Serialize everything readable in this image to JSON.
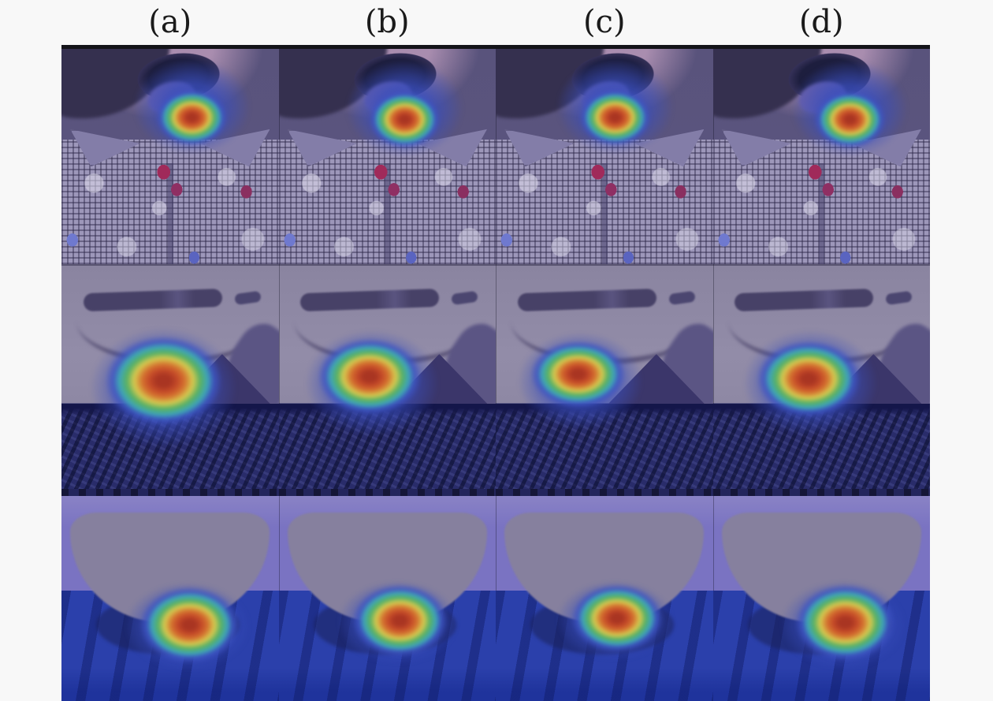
{
  "figure": {
    "column_labels": [
      "(a)",
      "(b)",
      "(c)",
      "(d)"
    ],
    "rows": [
      {
        "id": "row-1",
        "subject": "child with open mouth wearing a checkered shirt; heatmap centered on the chin below the mouth"
      },
      {
        "id": "row-2",
        "subject": "close-up of a mouth and chin over dark textured clothing; heatmap left of center on the mouth area"
      },
      {
        "id": "row-3",
        "subject": "lower face and chin above a blue shirt; heatmap at the neckline"
      }
    ]
  },
  "colors": {
    "page_background": "#f8f8f8",
    "label_color": "#1b1b1b",
    "jet_core": "#a93522",
    "jet_red": "#c44a28",
    "jet_orange": "#d4712f",
    "jet_yellow": "#d6c94f",
    "jet_green": "#57b064",
    "jet_cyan": "#3fa6b6",
    "jet_blue": "#3e55c3",
    "r1_base": "#5b5580",
    "r1_face": "#a98daf",
    "r1_hair": "#35304f",
    "r1_mouth": "#1d1e3e",
    "r1_tongue": "#6e62a8",
    "r1_shirt": "#9d97ba",
    "r1_check": "#2b2648",
    "r1_collar": "#837da8",
    "r1_accent": "#a02a5a",
    "r2_top": "#8e88a4",
    "r2_slit": "#474167",
    "r2_navy": "#292c6a",
    "r3_top": "#7a73c2",
    "r3_chin": "#86809e",
    "r3_shirt": "#2b40ab"
  }
}
